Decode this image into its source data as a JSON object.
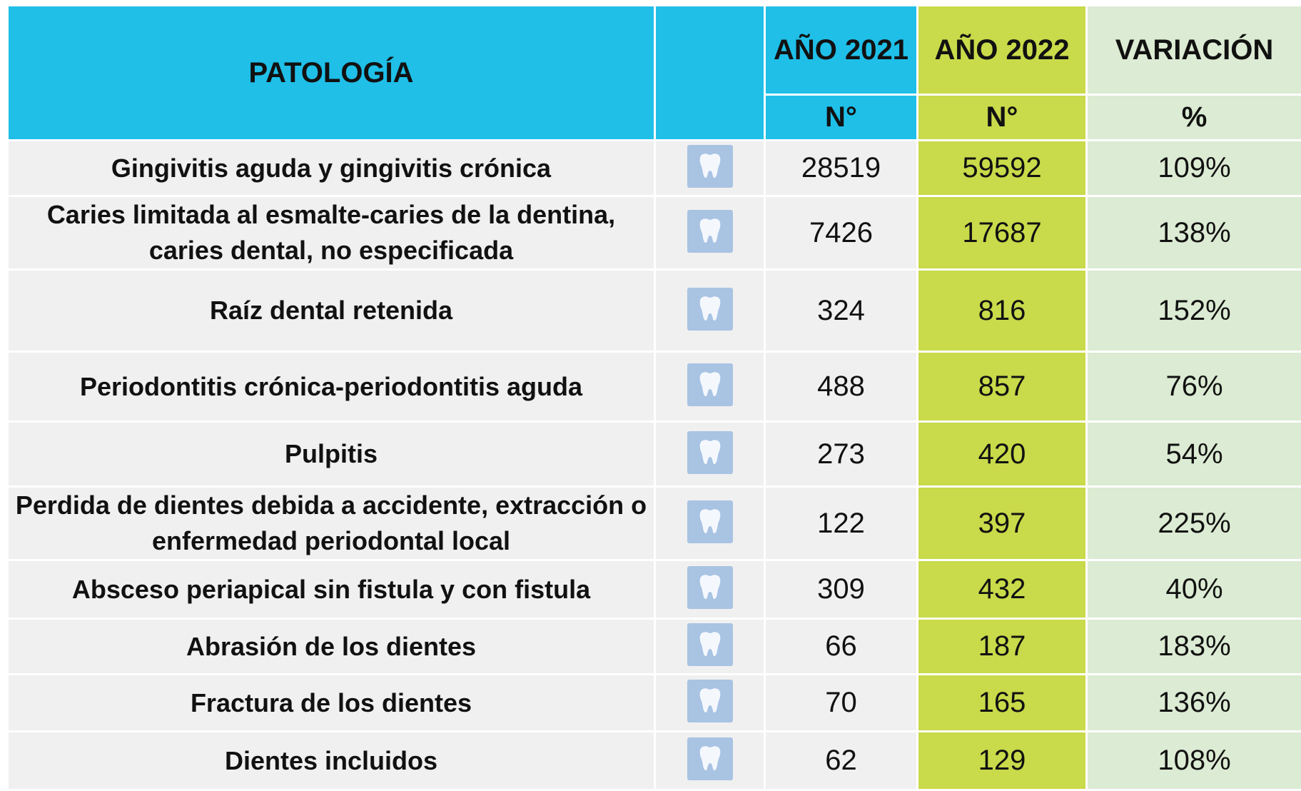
{
  "table": {
    "header": {
      "pathology": "PATOLOGÍA",
      "year1": "AÑO 2021",
      "year2": "AÑO 2022",
      "variation": "VARIACIÓN",
      "unit1": "N°",
      "unit2": "N°",
      "unit3": "%"
    },
    "rows": [
      [
        "Gingivitis aguda y gingivitis crónica",
        "28519",
        "59592",
        "109%"
      ],
      [
        "Caries limitada al esmalte-caries de la dentina, caries dental, no especificada",
        "7426",
        "17687",
        "138%"
      ],
      [
        "Raíz dental retenida",
        "324",
        "816",
        "152%"
      ],
      [
        "Periodontitis crónica-periodontitis aguda",
        "488",
        "857",
        "76%"
      ],
      [
        "Pulpitis",
        "273",
        "420",
        "54%"
      ],
      [
        "Perdida de dientes debida a accidente, extracción o enfermedad periodontal local",
        "122",
        "397",
        "225%"
      ],
      [
        "Absceso periapical sin fistula y con fistula",
        "309",
        "432",
        "40%"
      ],
      [
        "Abrasión de los dientes",
        "66",
        "187",
        "183%"
      ],
      [
        "Fractura de los dientes",
        "70",
        "165",
        "136%"
      ],
      [
        "Dientes incluidos",
        "62",
        "129",
        "108%"
      ]
    ]
  }
}
